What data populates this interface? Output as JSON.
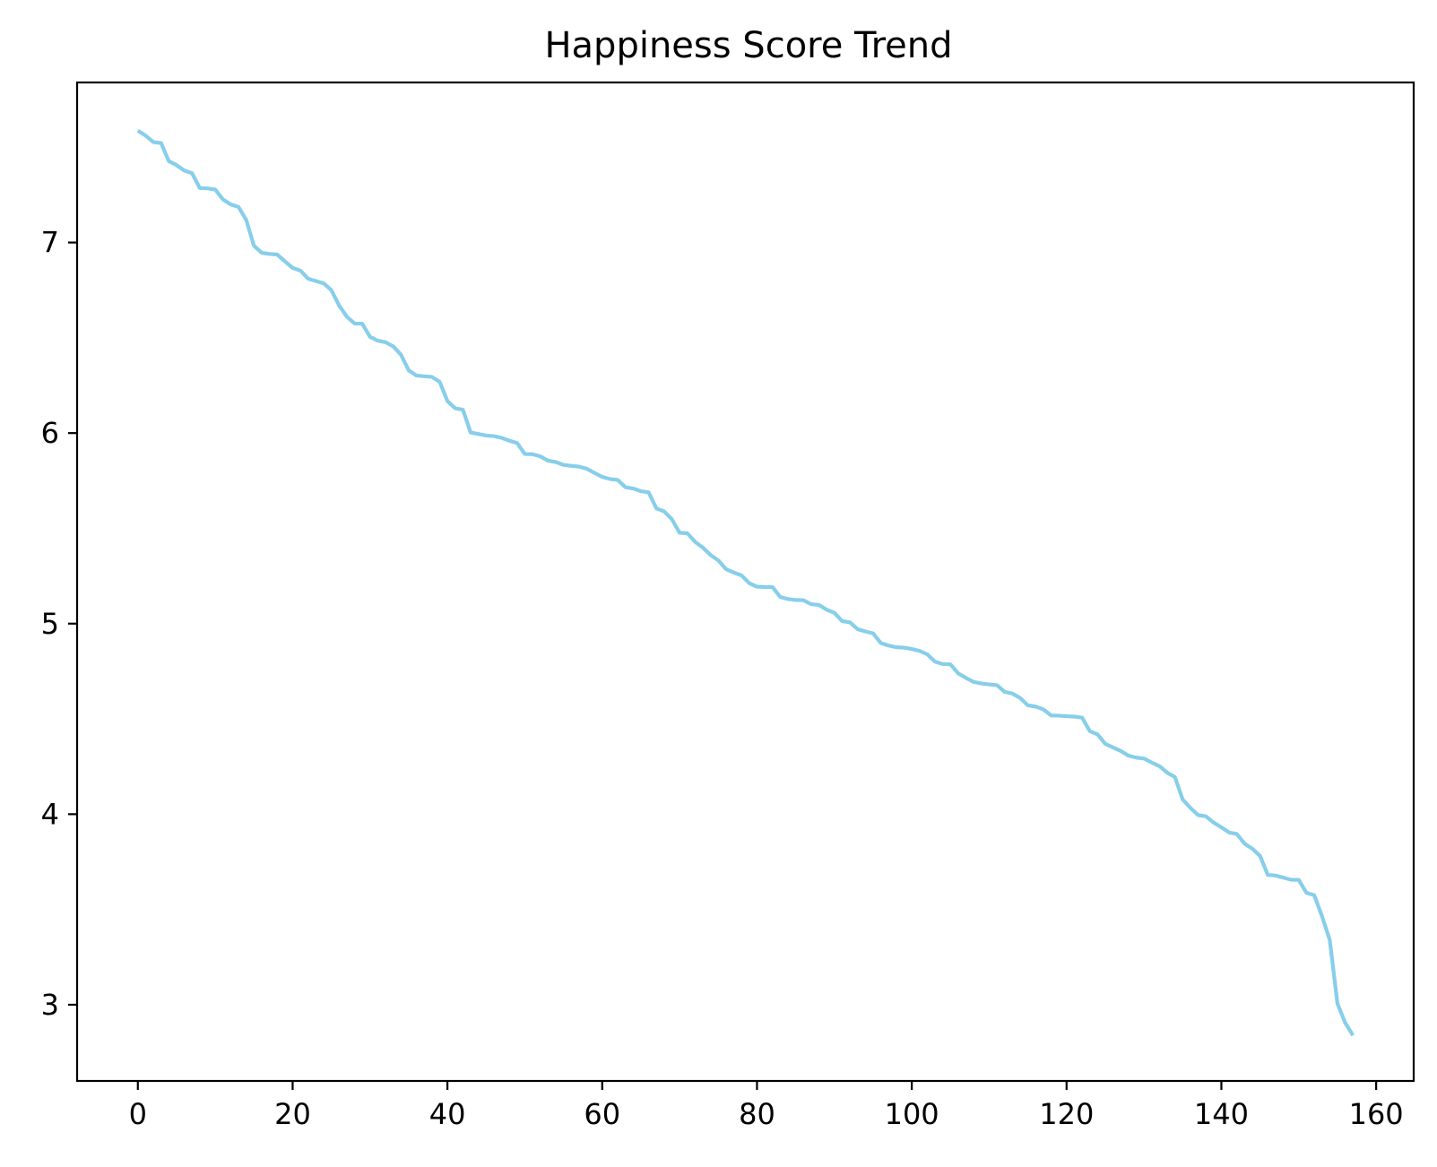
{
  "chart_data": {
    "type": "line",
    "title": "Happiness Score Trend",
    "xlabel": "",
    "ylabel": "",
    "xlim": [
      -7.85,
      164.85
    ],
    "ylim": [
      2.6,
      7.84
    ],
    "xticks": [
      0,
      20,
      40,
      60,
      80,
      100,
      120,
      140,
      160
    ],
    "yticks": [
      3,
      4,
      5,
      6,
      7
    ],
    "grid": false,
    "legend": "none",
    "line_color": "#87CEEB",
    "series": [
      {
        "values": [
          7.587,
          7.561,
          7.527,
          7.522,
          7.427,
          7.406,
          7.378,
          7.364,
          7.286,
          7.284,
          7.278,
          7.226,
          7.2,
          7.187,
          7.119,
          6.983,
          6.946,
          6.94,
          6.937,
          6.901,
          6.867,
          6.853,
          6.81,
          6.798,
          6.786,
          6.75,
          6.67,
          6.611,
          6.575,
          6.574,
          6.505,
          6.485,
          6.477,
          6.455,
          6.411,
          6.329,
          6.302,
          6.298,
          6.295,
          6.269,
          6.168,
          6.13,
          6.123,
          6.003,
          5.995,
          5.987,
          5.984,
          5.975,
          5.96,
          5.948,
          5.89,
          5.889,
          5.878,
          5.855,
          5.848,
          5.833,
          5.828,
          5.824,
          5.813,
          5.791,
          5.77,
          5.759,
          5.754,
          5.716,
          5.709,
          5.695,
          5.689,
          5.605,
          5.589,
          5.548,
          5.477,
          5.474,
          5.429,
          5.399,
          5.36,
          5.332,
          5.286,
          5.268,
          5.253,
          5.212,
          5.194,
          5.192,
          5.192,
          5.14,
          5.129,
          5.124,
          5.123,
          5.102,
          5.098,
          5.073,
          5.057,
          5.013,
          5.007,
          4.971,
          4.959,
          4.949,
          4.898,
          4.885,
          4.876,
          4.874,
          4.867,
          4.857,
          4.839,
          4.8,
          4.788,
          4.786,
          4.739,
          4.715,
          4.694,
          4.686,
          4.681,
          4.677,
          4.642,
          4.633,
          4.61,
          4.571,
          4.565,
          4.55,
          4.518,
          4.517,
          4.514,
          4.512,
          4.507,
          4.436,
          4.419,
          4.369,
          4.35,
          4.332,
          4.307,
          4.297,
          4.292,
          4.271,
          4.252,
          4.218,
          4.194,
          4.077,
          4.033,
          3.995,
          3.989,
          3.956,
          3.931,
          3.904,
          3.896,
          3.845,
          3.819,
          3.781,
          3.681,
          3.678,
          3.667,
          3.656,
          3.655,
          3.587,
          3.575,
          3.465,
          3.34,
          3.006,
          2.905,
          2.839
        ]
      }
    ]
  }
}
